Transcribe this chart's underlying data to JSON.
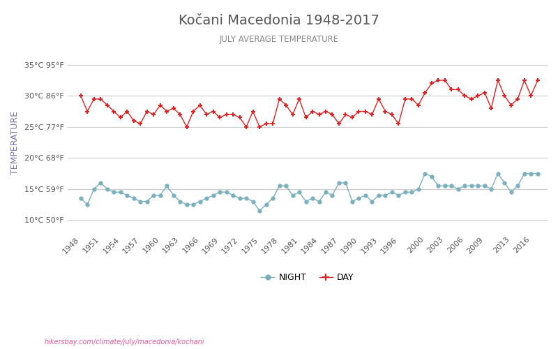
{
  "title": "Kočani Macedonia 1948-2017",
  "subtitle": "JULY AVERAGE TEMPERATURE",
  "ylabel": "TEMPERATURE",
  "url_text": "hikersbay.com/climate/july/macedonia/kochani",
  "years": [
    1948,
    1949,
    1950,
    1951,
    1952,
    1953,
    1954,
    1955,
    1956,
    1957,
    1958,
    1959,
    1960,
    1961,
    1962,
    1963,
    1964,
    1965,
    1966,
    1967,
    1968,
    1969,
    1970,
    1971,
    1972,
    1973,
    1974,
    1975,
    1976,
    1977,
    1978,
    1979,
    1980,
    1981,
    1982,
    1983,
    1984,
    1985,
    1986,
    1987,
    1988,
    1989,
    1990,
    1991,
    1992,
    1993,
    1994,
    1995,
    1996,
    1997,
    1998,
    1999,
    2000,
    2001,
    2002,
    2003,
    2004,
    2005,
    2006,
    2007,
    2008,
    2009,
    2010,
    2011,
    2012,
    2013,
    2014,
    2015,
    2016,
    2017
  ],
  "day_temps": [
    30.0,
    27.5,
    29.5,
    29.5,
    28.5,
    27.5,
    26.5,
    27.5,
    26.0,
    25.5,
    27.5,
    27.0,
    28.5,
    27.5,
    28.0,
    27.0,
    25.0,
    27.5,
    28.5,
    27.0,
    27.5,
    26.5,
    27.0,
    27.0,
    26.5,
    25.0,
    27.5,
    25.0,
    25.5,
    25.5,
    29.5,
    28.5,
    27.0,
    29.5,
    26.5,
    27.5,
    27.0,
    27.5,
    27.0,
    25.5,
    27.0,
    26.5,
    27.5,
    27.5,
    27.0,
    29.5,
    27.5,
    27.0,
    25.5,
    29.5,
    29.5,
    28.5,
    30.5,
    32.0,
    32.5,
    32.5,
    31.0,
    31.0,
    30.0,
    29.5,
    30.0,
    30.5,
    28.0,
    32.5,
    30.0,
    28.5,
    29.5,
    32.5,
    30.0,
    32.5
  ],
  "night_temps": [
    13.5,
    12.5,
    15.0,
    16.0,
    15.0,
    14.5,
    14.5,
    14.0,
    13.5,
    13.0,
    13.0,
    14.0,
    14.0,
    15.5,
    14.0,
    13.0,
    12.5,
    12.5,
    13.0,
    13.5,
    14.0,
    14.5,
    14.5,
    14.0,
    13.5,
    13.5,
    13.0,
    11.5,
    12.5,
    13.5,
    15.5,
    15.5,
    14.0,
    14.5,
    13.0,
    13.5,
    13.0,
    14.5,
    14.0,
    16.0,
    16.0,
    13.0,
    13.5,
    14.0,
    13.0,
    14.0,
    14.0,
    14.5,
    14.0,
    14.5,
    14.5,
    15.0,
    17.5,
    17.0,
    15.5,
    15.5,
    15.5,
    15.0,
    15.5,
    15.5,
    15.5,
    15.5,
    15.0,
    17.5,
    16.0,
    14.5,
    15.5,
    17.5,
    17.5,
    17.5
  ],
  "day_color": "#dd2222",
  "night_color": "#7ab0be",
  "ytick_vals": [
    10,
    15,
    20,
    25,
    30,
    35
  ],
  "ytick_labels": [
    "10°C 50°F",
    "15°C 59°F",
    "20°C 68°F",
    "25°C 77°F",
    "30°C 86°F",
    "35°C 95°F"
  ],
  "ylim": [
    8,
    37
  ],
  "xtick_years": [
    1948,
    1951,
    1954,
    1957,
    1960,
    1963,
    1966,
    1969,
    1972,
    1975,
    1978,
    1981,
    1984,
    1987,
    1990,
    1993,
    1996,
    2000,
    2003,
    2006,
    2009,
    2013,
    2016
  ],
  "xlim": [
    1946,
    2018.5
  ],
  "background_color": "#ffffff",
  "grid_color": "#cccccc",
  "title_color": "#555555",
  "subtitle_color": "#888888",
  "ylabel_color": "#7777aa",
  "url_color": "#ee5599"
}
